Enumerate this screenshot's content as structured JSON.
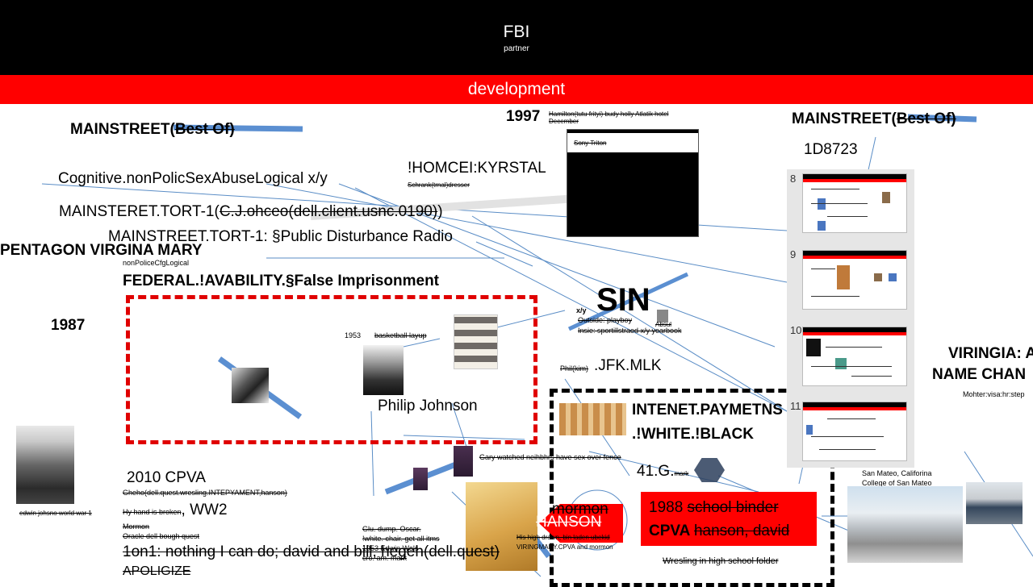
{
  "header": {
    "title": "FBI",
    "subtitle": "partner"
  },
  "devbar": {
    "label": "development"
  },
  "texts": {
    "mainstreet_left": "MAINSTREET(",
    "mainstreet_left_strike": "Best Of)",
    "year_1997": "1997",
    "hamilton": "Hamilton(tutu frityi) budy holly Atlatik hotel",
    "december": "December",
    "sony_triton": "Sony Triton",
    "mainstreet_right": "MAINSTREET(",
    "mainstreet_right_strike": "Best Of)",
    "code_1d": "1D8723",
    "cognitive": "Cognitive.nonPolicSexAbuseLogical x/y",
    "homcei": "!HOMCEI:KYRSTAL",
    "schrank": "Schrank(trnal)dresser",
    "tort1_a": "MAINSTERET.TORT-1(",
    "tort1_a_strike": "C.J.ohceo(dell.client.usnc.0190)",
    "tort1_a_end": ")",
    "tort1_b": "MAINSTREET.TORT-1: §Public Disturbance Radio",
    "pentagon": "PENTAGON VIRGINA MARY",
    "nonpolice": "nonPoliceCfgLogical",
    "federal": "FEDERAL.!AVABILITY.§False Imprisonment",
    "year_1987": "1987",
    "sin": "SIN",
    "xy": "x/y",
    "outside": "Outside: playboy",
    "insie": "Insie: sportillstraed x/y yearbook",
    "absul": "Absul",
    "photo_1953": "1953",
    "basketball": "basketball layup",
    "philip": "Philip Johnson",
    "phil_kim": "Phil(kim)",
    "jfk": ".JFK.MLK",
    "intenet": "INTENET.PAYMETNS",
    "white_black": ".!WHITE.!BLACK",
    "g41": "41.G.",
    "mark_small": "mark",
    "gary": "Gary watched neihbhrs have sex over fence",
    "viringia": "VIRINGIA: A",
    "name_chan": "NAME CHAN",
    "mohter": "Mohter:visa:hr:step",
    "san_mateo_1": "San Mateo, Califorina",
    "san_mateo_2": "College of San Mateo",
    "cpva2010": "2010 CPVA",
    "gheho": "Gheho(dell.quest.wresling.INTEPYAMENT,hanson)",
    "edwin": "edwin johsno world war 1",
    "hand_broken": "Hy hand is broken",
    "ww2": ", WW2",
    "mormon_small": "Mormon",
    "oracle": "Oracle dell bough quest",
    "one_on_one": "1on1: nothing I can do; david and bill, hegeh(dell.quest)",
    "apoligize": "APOLIGIZE",
    "glu": "Glu. dump. Oscar.",
    "white_chair": "!white. chair. get all itms",
    "y1953": "1953 Edwin Wels",
    "cro": "cro. am. mark",
    "mormon_big": "mormon",
    "hanson": "HANSON",
    "his_high": "His high drawn, bin laden ubekid",
    "viringmary": "VIRINGMARY.CPVA and mormon",
    "school_1988": "1988 ",
    "school_binder": "school binder",
    "cpva": "CPVA ",
    "hanson_david": "hanson, david",
    "wresling": "Wresling in high school folder"
  },
  "slides": [
    {
      "num": "8"
    },
    {
      "num": "9"
    },
    {
      "num": "10"
    },
    {
      "num": "11"
    }
  ],
  "colors": {
    "red": "#ff0000",
    "blue_stroke": "#5b8fd1",
    "line_blue": "#5a8dc6",
    "black": "#000000"
  }
}
